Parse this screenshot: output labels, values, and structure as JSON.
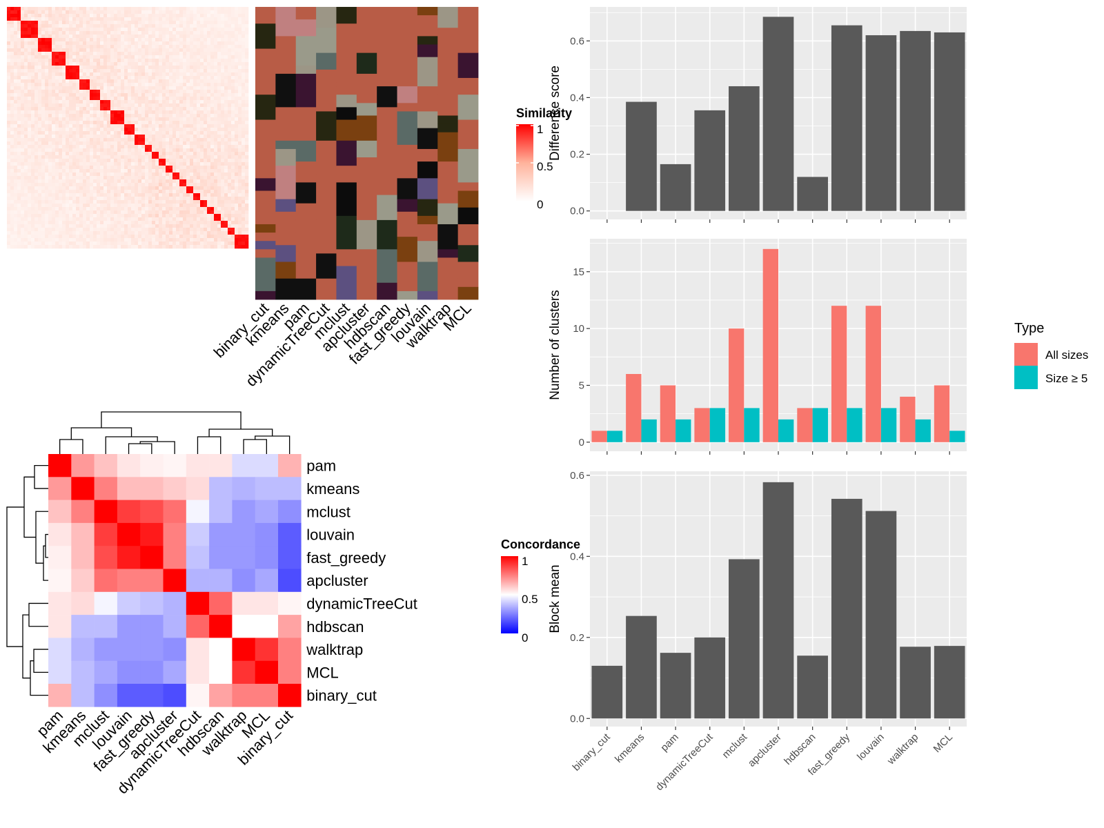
{
  "methods": [
    "binary_cut",
    "kmeans",
    "pam",
    "dynamicTreeCut",
    "mclust",
    "apcluster",
    "hdbscan",
    "fast_greedy",
    "louvain",
    "walktrap",
    "MCL"
  ],
  "similarity_legend": {
    "title": "Similarity",
    "ticks": [
      "1",
      "0.5",
      "0"
    ]
  },
  "concordance_legend": {
    "title": "Concordance",
    "ticks": [
      "1",
      "0.5",
      "0"
    ]
  },
  "colors": {
    "panel_bg": "#ebebeb",
    "grid": "#ffffff",
    "bar_dark": "#595959",
    "all_sizes": "#f8766d",
    "size_ge5": "#00bfc4",
    "heat_high": "#ff0000",
    "heat_mid": "#ffffff",
    "heat_low": "#0000ff"
  },
  "chart_data": [
    {
      "type": "heatmap",
      "title": "Similarity",
      "description_note": "",
      "row_count": 70,
      "col_labels": [
        "binary_cut",
        "kmeans",
        "pam",
        "dynamicTreeCut",
        "mclust",
        "apcluster",
        "hdbscan",
        "fast_greedy",
        "louvain",
        "walktrap",
        "MCL"
      ],
      "diagonal_blocks": [
        4,
        5,
        4,
        4,
        4,
        3,
        3,
        3,
        4,
        3,
        3,
        2,
        2,
        2,
        2,
        2,
        2,
        2,
        2,
        2,
        2,
        2,
        2,
        2,
        4
      ]
    },
    {
      "type": "heatmap",
      "title": "Concordance",
      "row_labels": [
        "pam",
        "kmeans",
        "mclust",
        "louvain",
        "fast_greedy",
        "apcluster",
        "dynamicTreeCut",
        "hdbscan",
        "walktrap",
        "MCL",
        "binary_cut"
      ],
      "col_labels": [
        "pam",
        "kmeans",
        "mclust",
        "louvain",
        "fast_greedy",
        "apcluster",
        "dynamicTreeCut",
        "hdbscan",
        "walktrap",
        "MCL",
        "binary_cut"
      ],
      "values": [
        [
          1.0,
          0.7,
          0.62,
          0.55,
          0.53,
          0.52,
          0.55,
          0.55,
          0.43,
          0.43,
          0.65
        ],
        [
          0.7,
          1.0,
          0.75,
          0.63,
          0.63,
          0.6,
          0.57,
          0.37,
          0.35,
          0.37,
          0.37
        ],
        [
          0.62,
          0.75,
          1.0,
          0.88,
          0.85,
          0.78,
          0.48,
          0.37,
          0.3,
          0.33,
          0.28
        ],
        [
          0.55,
          0.63,
          0.88,
          1.0,
          0.95,
          0.75,
          0.4,
          0.3,
          0.3,
          0.28,
          0.18
        ],
        [
          0.53,
          0.63,
          0.85,
          0.95,
          1.0,
          0.75,
          0.38,
          0.3,
          0.3,
          0.28,
          0.18
        ],
        [
          0.52,
          0.6,
          0.78,
          0.75,
          0.75,
          1.0,
          0.35,
          0.35,
          0.28,
          0.33,
          0.15
        ],
        [
          0.55,
          0.57,
          0.48,
          0.4,
          0.38,
          0.35,
          1.0,
          0.8,
          0.55,
          0.55,
          0.52
        ],
        [
          0.55,
          0.37,
          0.37,
          0.3,
          0.3,
          0.35,
          0.8,
          1.0,
          0.5,
          0.5,
          0.68
        ],
        [
          0.43,
          0.35,
          0.3,
          0.3,
          0.3,
          0.28,
          0.55,
          0.5,
          1.0,
          0.9,
          0.75
        ],
        [
          0.43,
          0.37,
          0.33,
          0.28,
          0.28,
          0.33,
          0.55,
          0.5,
          0.9,
          1.0,
          0.75
        ],
        [
          0.65,
          0.37,
          0.28,
          0.18,
          0.18,
          0.15,
          0.52,
          0.68,
          0.75,
          0.75,
          1.0
        ]
      ]
    },
    {
      "type": "bar",
      "categories": [
        "binary_cut",
        "kmeans",
        "pam",
        "dynamicTreeCut",
        "mclust",
        "apcluster",
        "hdbscan",
        "fast_greedy",
        "louvain",
        "walktrap",
        "MCL"
      ],
      "values": [
        0.0,
        0.385,
        0.165,
        0.355,
        0.44,
        0.685,
        0.12,
        0.655,
        0.62,
        0.635,
        0.63
      ],
      "ylabel": "Difference score",
      "ylim": [
        -0.03,
        0.72
      ],
      "yticks": [
        "0.0",
        "0.2",
        "0.4",
        "0.6"
      ]
    },
    {
      "type": "bar",
      "categories": [
        "binary_cut",
        "kmeans",
        "pam",
        "dynamicTreeCut",
        "mclust",
        "apcluster",
        "hdbscan",
        "fast_greedy",
        "louvain",
        "walktrap",
        "MCL"
      ],
      "series": [
        {
          "name": "All sizes",
          "values": [
            1,
            6,
            5,
            3,
            10,
            17,
            3,
            12,
            12,
            4,
            5
          ]
        },
        {
          "name": "Size ≥ 5",
          "values": [
            1,
            2,
            2,
            3,
            3,
            2,
            3,
            3,
            3,
            2,
            1
          ]
        }
      ],
      "ylabel": "Number of clusters",
      "ylim": [
        -0.8,
        17.9
      ],
      "yticks": [
        "0",
        "5",
        "10",
        "15"
      ],
      "legend": {
        "title": "Type",
        "position": "right"
      }
    },
    {
      "type": "bar",
      "categories": [
        "binary_cut",
        "kmeans",
        "pam",
        "dynamicTreeCut",
        "mclust",
        "apcluster",
        "hdbscan",
        "fast_greedy",
        "louvain",
        "walktrap",
        "MCL"
      ],
      "values": [
        0.13,
        0.253,
        0.162,
        0.2,
        0.393,
        0.583,
        0.155,
        0.542,
        0.512,
        0.177,
        0.179
      ],
      "ylabel": "Block mean",
      "ylim": [
        -0.02,
        0.61
      ],
      "yticks": [
        "0.0",
        "0.2",
        "0.4",
        "0.6"
      ]
    }
  ]
}
